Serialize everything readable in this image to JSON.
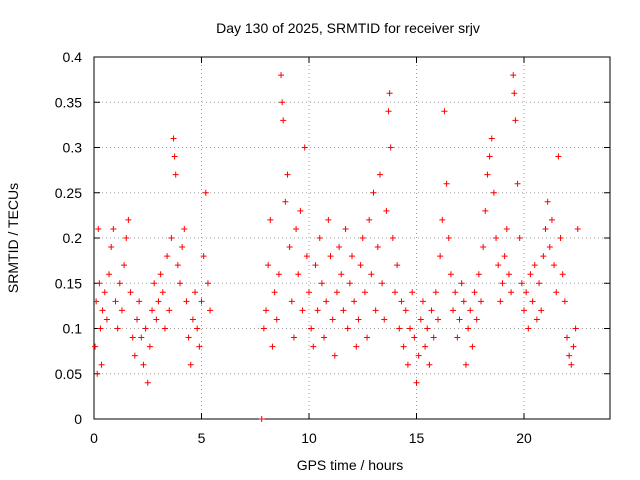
{
  "chart_data": {
    "type": "scatter",
    "title": "Day 130 of 2025, SRMTID for receiver srjv",
    "xlabel": "GPS time / hours",
    "ylabel": "SRMTID / TECUs",
    "xlim": [
      0,
      24
    ],
    "ylim": [
      0,
      0.4
    ],
    "x_ticks": [
      "0",
      "5",
      "10",
      "15",
      "20"
    ],
    "y_ticks": [
      "0",
      "0.05",
      "0.1",
      "0.15",
      "0.2",
      "0.25",
      "0.3",
      "0.35",
      "0.4"
    ],
    "grid": true,
    "marker": "+",
    "color": "#ff0000",
    "series": [
      {
        "name": "SRMTID",
        "points": [
          [
            0.05,
            0.08
          ],
          [
            0.1,
            0.13
          ],
          [
            0.15,
            0.05
          ],
          [
            0.2,
            0.21
          ],
          [
            0.25,
            0.15
          ],
          [
            0.3,
            0.1
          ],
          [
            0.35,
            0.06
          ],
          [
            0.4,
            0.12
          ],
          [
            0.5,
            0.14
          ],
          [
            0.6,
            0.11
          ],
          [
            0.7,
            0.16
          ],
          [
            0.8,
            0.19
          ],
          [
            0.9,
            0.21
          ],
          [
            1.0,
            0.13
          ],
          [
            1.1,
            0.1
          ],
          [
            1.2,
            0.15
          ],
          [
            1.3,
            0.12
          ],
          [
            1.4,
            0.17
          ],
          [
            1.5,
            0.2
          ],
          [
            1.6,
            0.22
          ],
          [
            1.7,
            0.14
          ],
          [
            1.8,
            0.09
          ],
          [
            1.9,
            0.07
          ],
          [
            2.0,
            0.11
          ],
          [
            2.1,
            0.13
          ],
          [
            2.2,
            0.09
          ],
          [
            2.3,
            0.06
          ],
          [
            2.4,
            0.1
          ],
          [
            2.5,
            0.04
          ],
          [
            2.6,
            0.08
          ],
          [
            2.7,
            0.12
          ],
          [
            2.8,
            0.15
          ],
          [
            2.9,
            0.11
          ],
          [
            3.0,
            0.13
          ],
          [
            3.1,
            0.16
          ],
          [
            3.2,
            0.14
          ],
          [
            3.3,
            0.1
          ],
          [
            3.4,
            0.18
          ],
          [
            3.5,
            0.12
          ],
          [
            3.6,
            0.2
          ],
          [
            3.7,
            0.31
          ],
          [
            3.75,
            0.29
          ],
          [
            3.8,
            0.27
          ],
          [
            3.9,
            0.17
          ],
          [
            4.0,
            0.15
          ],
          [
            4.1,
            0.19
          ],
          [
            4.2,
            0.21
          ],
          [
            4.3,
            0.13
          ],
          [
            4.4,
            0.09
          ],
          [
            4.5,
            0.06
          ],
          [
            4.6,
            0.11
          ],
          [
            4.7,
            0.14
          ],
          [
            4.8,
            0.1
          ],
          [
            4.9,
            0.08
          ],
          [
            5.0,
            0.13
          ],
          [
            5.1,
            0.18
          ],
          [
            5.2,
            0.25
          ],
          [
            5.3,
            0.15
          ],
          [
            5.4,
            0.12
          ],
          [
            7.8,
            0.0
          ],
          [
            7.9,
            0.1
          ],
          [
            8.0,
            0.12
          ],
          [
            8.1,
            0.17
          ],
          [
            8.2,
            0.22
          ],
          [
            8.3,
            0.08
          ],
          [
            8.4,
            0.14
          ],
          [
            8.5,
            0.11
          ],
          [
            8.6,
            0.16
          ],
          [
            8.7,
            0.38
          ],
          [
            8.75,
            0.35
          ],
          [
            8.8,
            0.33
          ],
          [
            8.9,
            0.24
          ],
          [
            9.0,
            0.27
          ],
          [
            9.1,
            0.19
          ],
          [
            9.2,
            0.13
          ],
          [
            9.3,
            0.09
          ],
          [
            9.4,
            0.21
          ],
          [
            9.5,
            0.16
          ],
          [
            9.6,
            0.23
          ],
          [
            9.7,
            0.12
          ],
          [
            9.8,
            0.3
          ],
          [
            9.9,
            0.18
          ],
          [
            10.0,
            0.14
          ],
          [
            10.1,
            0.1
          ],
          [
            10.2,
            0.08
          ],
          [
            10.3,
            0.17
          ],
          [
            10.4,
            0.12
          ],
          [
            10.5,
            0.2
          ],
          [
            10.6,
            0.15
          ],
          [
            10.7,
            0.09
          ],
          [
            10.8,
            0.13
          ],
          [
            10.9,
            0.22
          ],
          [
            11.0,
            0.18
          ],
          [
            11.1,
            0.11
          ],
          [
            11.2,
            0.07
          ],
          [
            11.3,
            0.14
          ],
          [
            11.4,
            0.19
          ],
          [
            11.5,
            0.16
          ],
          [
            11.6,
            0.12
          ],
          [
            11.7,
            0.21
          ],
          [
            11.8,
            0.1
          ],
          [
            11.9,
            0.15
          ],
          [
            12.0,
            0.18
          ],
          [
            12.1,
            0.13
          ],
          [
            12.2,
            0.08
          ],
          [
            12.3,
            0.11
          ],
          [
            12.4,
            0.17
          ],
          [
            12.5,
            0.2
          ],
          [
            12.6,
            0.14
          ],
          [
            12.7,
            0.09
          ],
          [
            12.8,
            0.22
          ],
          [
            12.9,
            0.16
          ],
          [
            13.0,
            0.25
          ],
          [
            13.1,
            0.12
          ],
          [
            13.2,
            0.19
          ],
          [
            13.3,
            0.27
          ],
          [
            13.4,
            0.15
          ],
          [
            13.5,
            0.11
          ],
          [
            13.6,
            0.23
          ],
          [
            13.7,
            0.34
          ],
          [
            13.75,
            0.36
          ],
          [
            13.8,
            0.3
          ],
          [
            13.9,
            0.2
          ],
          [
            14.0,
            0.14
          ],
          [
            14.1,
            0.17
          ],
          [
            14.2,
            0.1
          ],
          [
            14.3,
            0.13
          ],
          [
            14.4,
            0.08
          ],
          [
            14.5,
            0.12
          ],
          [
            14.6,
            0.06
          ],
          [
            14.7,
            0.1
          ],
          [
            14.8,
            0.14
          ],
          [
            14.9,
            0.09
          ],
          [
            15.0,
            0.04
          ],
          [
            15.1,
            0.07
          ],
          [
            15.2,
            0.11
          ],
          [
            15.3,
            0.13
          ],
          [
            15.4,
            0.08
          ],
          [
            15.5,
            0.1
          ],
          [
            15.6,
            0.06
          ],
          [
            15.7,
            0.12
          ],
          [
            15.8,
            0.09
          ],
          [
            15.9,
            0.14
          ],
          [
            16.0,
            0.11
          ],
          [
            16.1,
            0.18
          ],
          [
            16.2,
            0.22
          ],
          [
            16.3,
            0.34
          ],
          [
            16.4,
            0.26
          ],
          [
            16.5,
            0.2
          ],
          [
            16.6,
            0.16
          ],
          [
            16.7,
            0.12
          ],
          [
            16.8,
            0.14
          ],
          [
            16.9,
            0.09
          ],
          [
            17.0,
            0.11
          ],
          [
            17.1,
            0.15
          ],
          [
            17.2,
            0.13
          ],
          [
            17.3,
            0.06
          ],
          [
            17.4,
            0.1
          ],
          [
            17.5,
            0.12
          ],
          [
            17.6,
            0.08
          ],
          [
            17.7,
            0.14
          ],
          [
            17.8,
            0.11
          ],
          [
            17.9,
            0.16
          ],
          [
            18.0,
            0.13
          ],
          [
            18.1,
            0.19
          ],
          [
            18.2,
            0.23
          ],
          [
            18.3,
            0.27
          ],
          [
            18.4,
            0.29
          ],
          [
            18.5,
            0.31
          ],
          [
            18.6,
            0.25
          ],
          [
            18.7,
            0.2
          ],
          [
            18.8,
            0.17
          ],
          [
            18.9,
            0.13
          ],
          [
            19.0,
            0.15
          ],
          [
            19.1,
            0.18
          ],
          [
            19.2,
            0.21
          ],
          [
            19.3,
            0.16
          ],
          [
            19.4,
            0.14
          ],
          [
            19.5,
            0.38
          ],
          [
            19.55,
            0.36
          ],
          [
            19.6,
            0.33
          ],
          [
            19.7,
            0.26
          ],
          [
            19.8,
            0.2
          ],
          [
            19.9,
            0.15
          ],
          [
            20.0,
            0.12
          ],
          [
            20.1,
            0.14
          ],
          [
            20.2,
            0.1
          ],
          [
            20.3,
            0.16
          ],
          [
            20.4,
            0.13
          ],
          [
            20.5,
            0.17
          ],
          [
            20.6,
            0.11
          ],
          [
            20.7,
            0.15
          ],
          [
            20.8,
            0.12
          ],
          [
            20.9,
            0.18
          ],
          [
            21.0,
            0.21
          ],
          [
            21.1,
            0.24
          ],
          [
            21.2,
            0.19
          ],
          [
            21.3,
            0.22
          ],
          [
            21.4,
            0.17
          ],
          [
            21.5,
            0.14
          ],
          [
            21.6,
            0.29
          ],
          [
            21.7,
            0.2
          ],
          [
            21.8,
            0.16
          ],
          [
            21.9,
            0.13
          ],
          [
            22.0,
            0.09
          ],
          [
            22.1,
            0.07
          ],
          [
            22.2,
            0.06
          ],
          [
            22.3,
            0.08
          ],
          [
            22.4,
            0.1
          ],
          [
            22.5,
            0.21
          ]
        ]
      }
    ]
  }
}
